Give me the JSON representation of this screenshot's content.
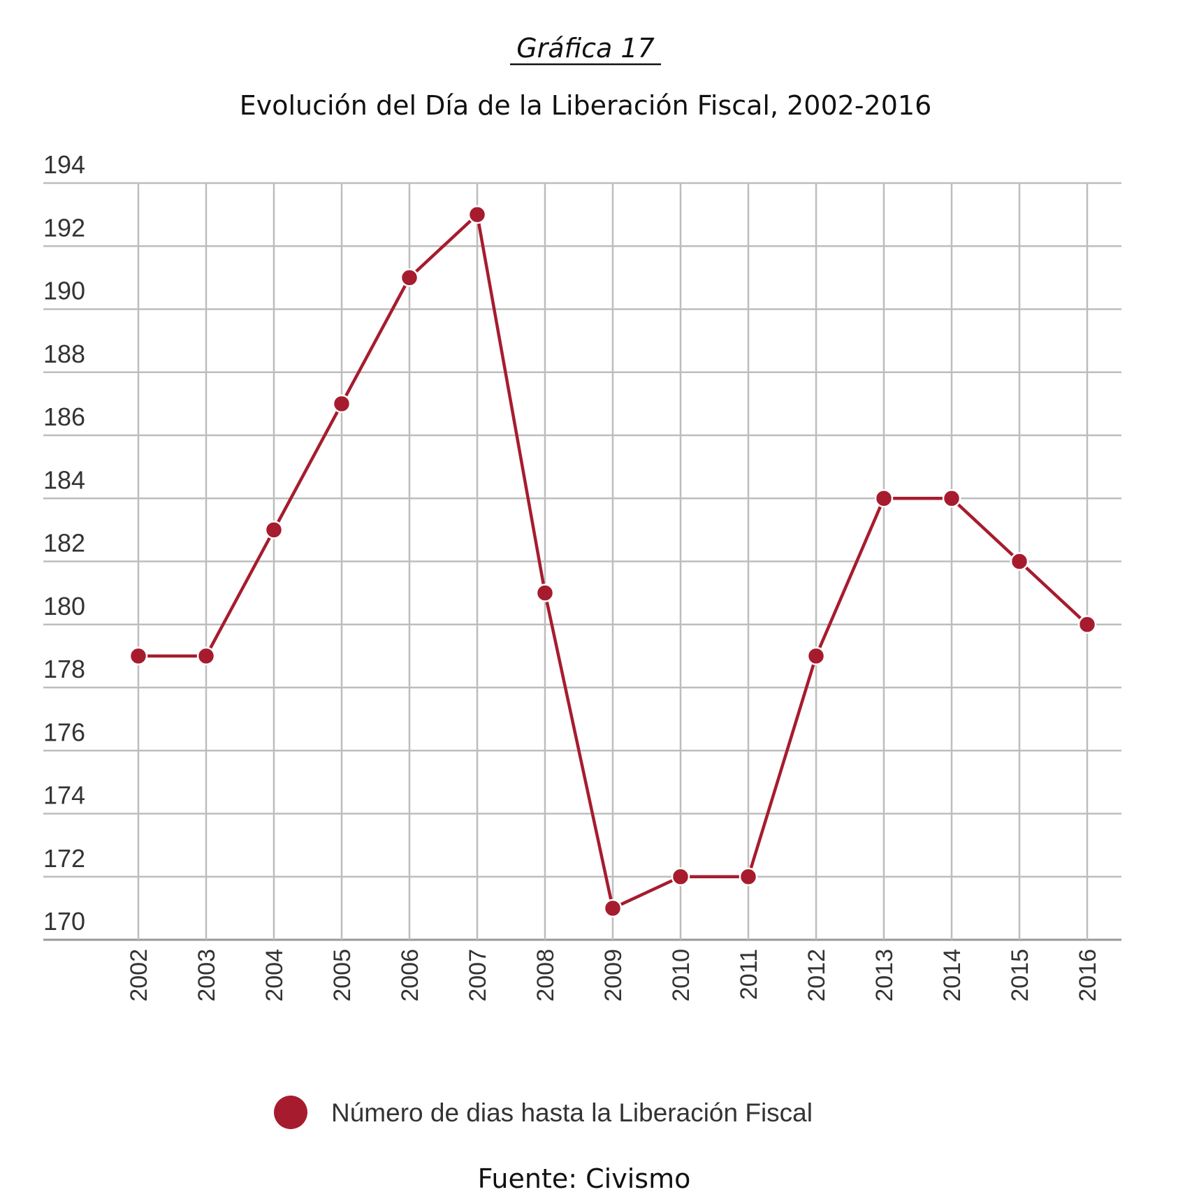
{
  "caption": "Gráfica 17",
  "source": "Fuente: Civismo",
  "colors": {
    "series": "#a61c2e",
    "grid": "#bdbdbd"
  },
  "chart_data": {
    "type": "line",
    "title": "Evolución del Día de la Liberación Fiscal, 2002-2016",
    "xlabel": "",
    "ylabel": "",
    "x": [
      "2002",
      "2003",
      "2004",
      "2005",
      "2006",
      "2007",
      "2008",
      "2009",
      "2010",
      "2011",
      "2012",
      "2013",
      "2014",
      "2015",
      "2016"
    ],
    "series": [
      {
        "name": "Número de dias hasta la Liberación Fiscal",
        "values": [
          179,
          179,
          183,
          187,
          191,
          193,
          181,
          171,
          172,
          172,
          179,
          184,
          184,
          182,
          180
        ]
      }
    ],
    "ylim": [
      170,
      194
    ],
    "yticks": [
      170,
      172,
      174,
      176,
      178,
      180,
      182,
      184,
      186,
      188,
      190,
      192,
      194
    ],
    "grid": true,
    "legend": "bottom-center",
    "x_tick_rotation": "vertical"
  }
}
